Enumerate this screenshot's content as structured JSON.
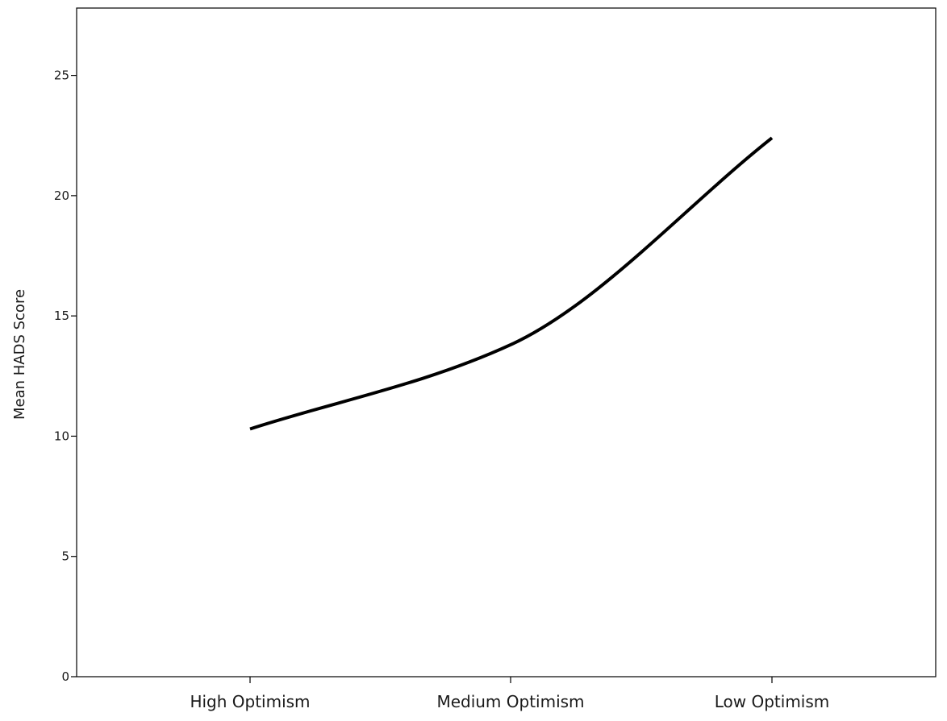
{
  "chart_data": {
    "type": "line",
    "title": "",
    "xlabel": "",
    "ylabel": "Mean HADS Score",
    "categories": [
      "High Optimism",
      "Medium Optimism",
      "Low Optimism"
    ],
    "series": [
      {
        "values": [
          10.3,
          13.8,
          22.4
        ]
      }
    ],
    "interpolation": "smooth",
    "ylim": [
      0,
      27.8
    ],
    "yticks": [
      "0",
      "5",
      "10",
      "15",
      "20",
      "25"
    ],
    "grid": false,
    "line_color": "#000000",
    "background_color": "#ffffff"
  }
}
